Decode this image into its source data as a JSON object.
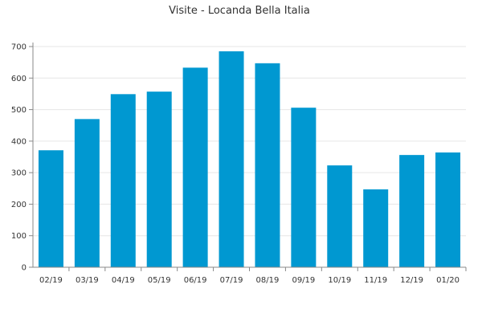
{
  "chart_data": {
    "type": "bar",
    "title": "Visite - Locanda Bella Italia",
    "xlabel": "",
    "ylabel": "",
    "categories": [
      "02/19",
      "03/19",
      "04/19",
      "05/19",
      "06/19",
      "07/19",
      "08/19",
      "09/19",
      "10/19",
      "11/19",
      "12/19",
      "01/20"
    ],
    "values": [
      371,
      470,
      549,
      557,
      633,
      685,
      647,
      506,
      323,
      247,
      356,
      364
    ],
    "ylim": [
      0,
      700
    ],
    "yticks": [
      "0",
      "100",
      "200",
      "300",
      "400",
      "500",
      "600",
      "700"
    ],
    "grid": true,
    "bar_color": "#0098d1"
  }
}
